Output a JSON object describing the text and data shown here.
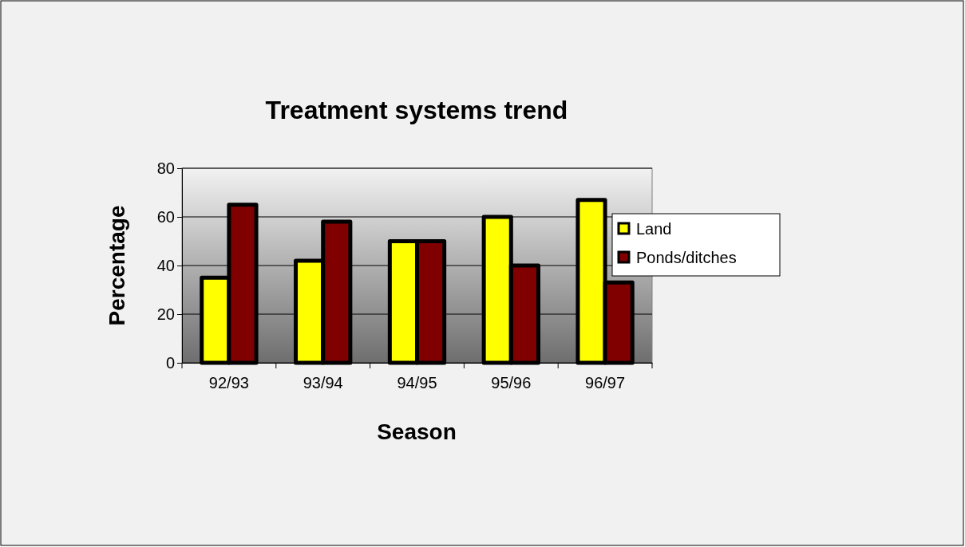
{
  "chart_data": {
    "type": "bar",
    "title": "Treatment systems trend",
    "xlabel": "Season",
    "ylabel": "Percentage",
    "categories": [
      "92/93",
      "93/94",
      "94/95",
      "95/96",
      "96/97"
    ],
    "series": [
      {
        "name": "Land",
        "color": "#ffff00",
        "values": [
          35,
          42,
          50,
          60,
          67
        ]
      },
      {
        "name": "Ponds/ditches",
        "color": "#800000",
        "values": [
          65,
          58,
          50,
          40,
          33
        ]
      }
    ],
    "ylim": [
      0,
      80
    ],
    "yticks": [
      0,
      20,
      40,
      60,
      80
    ],
    "grid": "y",
    "legend": "right"
  }
}
